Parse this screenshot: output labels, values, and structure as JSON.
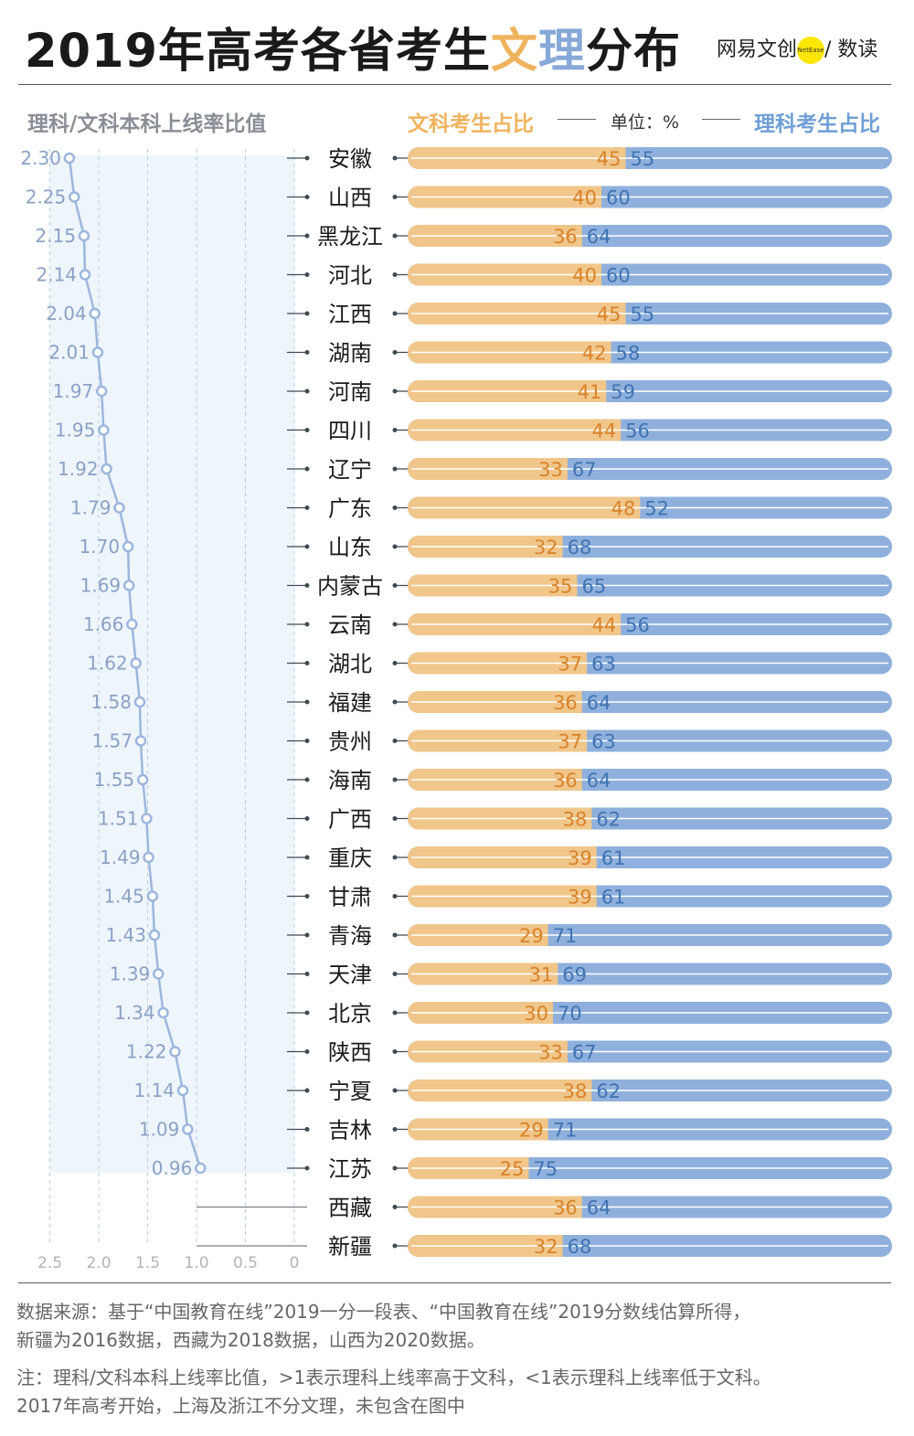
{
  "title": {
    "prefix": "2019年高考各省考生",
    "hl1": "文",
    "hl2": "理",
    "suffix": "分布"
  },
  "brand": {
    "left": "网易文创",
    "badge": "NetEase",
    "right": "/ 数读"
  },
  "left_header": "理科/文科本科上线率比值",
  "right_header": {
    "wen": "文科考生占比",
    "unit": "单位：%",
    "li": "理科考生占比"
  },
  "colors": {
    "wen": "#f0c68a",
    "li": "#8fb0dc",
    "wen_text": "#d9832a",
    "li_text": "#3f74b5",
    "ratio_line": "#9cb7dd",
    "panel": "#eef5fb"
  },
  "chart_data": {
    "type": "bar",
    "title": "2019年高考各省考生文理分布",
    "xlabel": "理科/文科本科上线率比值",
    "xlim": [
      0,
      2.5
    ],
    "x_ticks": [
      "2.5",
      "2.0",
      "1.5",
      "1.0",
      "0.5",
      "0"
    ],
    "categories": [
      "安徽",
      "山西",
      "黑龙江",
      "河北",
      "江西",
      "湖南",
      "河南",
      "四川",
      "辽宁",
      "广东",
      "山东",
      "内蒙古",
      "云南",
      "湖北",
      "福建",
      "贵州",
      "海南",
      "广西",
      "重庆",
      "甘肃",
      "青海",
      "天津",
      "北京",
      "陕西",
      "宁夏",
      "吉林",
      "江苏",
      "西藏",
      "新疆"
    ],
    "ratio": [
      2.3,
      2.25,
      2.15,
      2.14,
      2.04,
      2.01,
      1.97,
      1.95,
      1.92,
      1.79,
      1.7,
      1.69,
      1.66,
      1.62,
      1.58,
      1.57,
      1.55,
      1.51,
      1.49,
      1.45,
      1.43,
      1.39,
      1.34,
      1.22,
      1.14,
      1.09,
      0.96,
      null,
      null
    ],
    "ratio_labels": [
      "2.30",
      "2.25",
      "2.15",
      "2.14",
      "2.04",
      "2.01",
      "1.97",
      "1.95",
      "1.92",
      "1.79",
      "1.70",
      "1.69",
      "1.66",
      "1.62",
      "1.58",
      "1.57",
      "1.55",
      "1.51",
      "1.49",
      "1.45",
      "1.43",
      "1.39",
      "1.34",
      "1.22",
      "1.14",
      "1.09",
      "0.96",
      "",
      ""
    ],
    "series": [
      {
        "name": "文科考生占比",
        "values": [
          45,
          40,
          36,
          40,
          45,
          42,
          41,
          44,
          33,
          48,
          32,
          35,
          44,
          37,
          36,
          37,
          36,
          38,
          39,
          39,
          29,
          31,
          30,
          33,
          38,
          29,
          25,
          36,
          32
        ]
      },
      {
        "name": "理科考生占比",
        "values": [
          55,
          60,
          64,
          60,
          55,
          58,
          59,
          56,
          67,
          52,
          68,
          65,
          56,
          63,
          64,
          63,
          64,
          62,
          61,
          61,
          71,
          69,
          70,
          67,
          62,
          71,
          75,
          64,
          68
        ]
      }
    ]
  },
  "notes": {
    "source1": "数据来源：基于“中国教育在线”2019一分一段表、“中国教育在线”2019分数线估算所得，",
    "source2": "新疆为2016数据，西藏为2018数据，山西为2020数据。",
    "note1": "注：理科/文科本科上线率比值，>1表示理科上线率高于文科，<1表示理科上线率低于文科。",
    "note2": "2017年高考开始，上海及浙江不分文理，未包含在图中"
  }
}
